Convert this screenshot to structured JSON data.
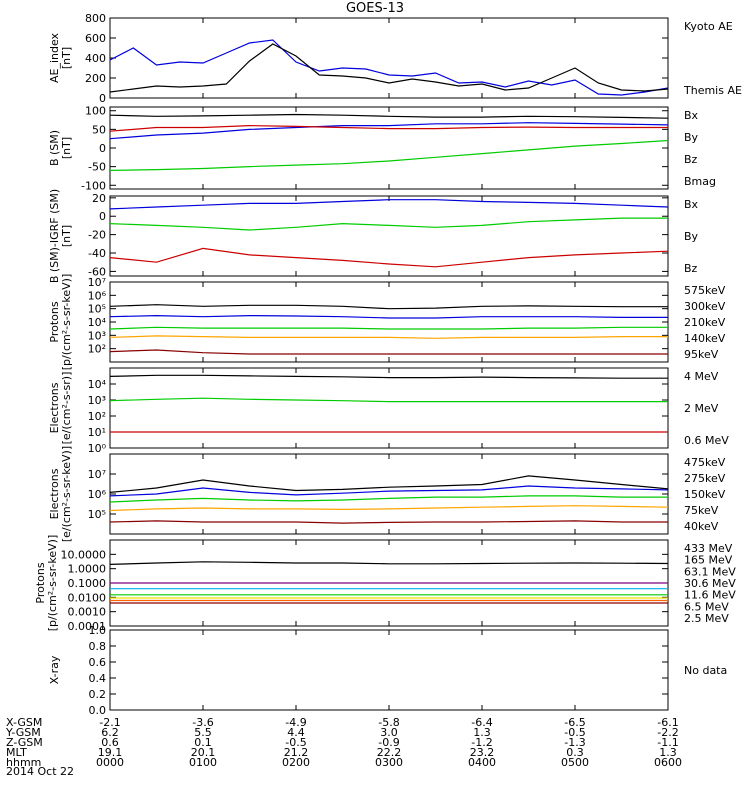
{
  "title": "GOES-13",
  "date": "2014 Oct 22",
  "colors": {
    "black": "#000000",
    "blue": "#0000dd",
    "green": "#00cc00",
    "red": "#cc0000",
    "orange": "#ffa500",
    "darkred": "#880000",
    "yellow": "#e6e600",
    "cyan": "#00b0f0",
    "purple": "#800080",
    "darkorange": "#ff6000"
  },
  "x_time_ticks": [
    "0000",
    "0100",
    "0200",
    "0300",
    "0400",
    "0500",
    "0600"
  ],
  "orbit_table": [
    {
      "label": "X-GSM",
      "values": [
        "-2.1",
        "-3.6",
        "-4.9",
        "-5.8",
        "-6.4",
        "-6.5",
        "-6.1"
      ]
    },
    {
      "label": "Y-GSM",
      "values": [
        "6.2",
        "5.5",
        "4.4",
        "3.0",
        "1.3",
        "-0.5",
        "-2.2"
      ]
    },
    {
      "label": "Z-GSM",
      "values": [
        "0.6",
        "0.1",
        "-0.5",
        "-0.9",
        "-1.2",
        "-1.3",
        "-1.1"
      ]
    },
    {
      "label": "MLT",
      "values": [
        "19.1",
        "20.1",
        "21.2",
        "22.2",
        "23.2",
        "0.3",
        "1.3"
      ]
    },
    {
      "label": "hhmm",
      "values": [
        "0000",
        "0100",
        "0200",
        "0300",
        "0400",
        "0500",
        "0600"
      ]
    }
  ],
  "chart_data": [
    {
      "type": "line",
      "ylabel": [
        "AE_index",
        "[nT]"
      ],
      "ylim": [
        0,
        800
      ],
      "yticks": [
        "0",
        "200",
        "400",
        "600",
        "800"
      ],
      "x": [
        0,
        0.25,
        0.5,
        0.75,
        1.0,
        1.25,
        1.5,
        1.75,
        2.0,
        2.25,
        2.5,
        2.75,
        3.0,
        3.25,
        3.5,
        3.75,
        4.0,
        4.25,
        4.5,
        4.75,
        5.0,
        5.25,
        5.5,
        5.75,
        6.0
      ],
      "series": [
        {
          "name": "Kyoto AE",
          "color": "blue",
          "values": [
            380,
            500,
            330,
            360,
            350,
            450,
            550,
            580,
            360,
            270,
            300,
            290,
            230,
            220,
            250,
            150,
            160,
            110,
            170,
            130,
            180,
            40,
            30,
            60,
            100
          ]
        },
        {
          "name": "Themis AE",
          "color": "black",
          "values": [
            60,
            90,
            120,
            110,
            120,
            140,
            370,
            540,
            420,
            230,
            220,
            200,
            150,
            190,
            160,
            120,
            140,
            80,
            100,
            200,
            300,
            150,
            80,
            70,
            90
          ]
        }
      ]
    },
    {
      "type": "line",
      "ylabel": [
        "B (SM)",
        "[nT]"
      ],
      "ylim": [
        -110,
        110
      ],
      "yticks": [
        "-100",
        "-50",
        "0",
        "50",
        "100"
      ],
      "x": [
        0,
        0.5,
        1.0,
        1.5,
        2.0,
        2.5,
        3.0,
        3.5,
        4.0,
        4.5,
        5.0,
        5.5,
        6.0
      ],
      "series": [
        {
          "name": "Bx",
          "color": "blue",
          "values": [
            25,
            35,
            40,
            50,
            55,
            60,
            60,
            65,
            65,
            68,
            66,
            64,
            62
          ]
        },
        {
          "name": "By",
          "color": "green",
          "values": [
            -60,
            -58,
            -55,
            -50,
            -46,
            -42,
            -35,
            -25,
            -15,
            -5,
            5,
            12,
            20
          ]
        },
        {
          "name": "Bz",
          "color": "red",
          "values": [
            45,
            55,
            55,
            60,
            58,
            55,
            52,
            52,
            55,
            56,
            55,
            55,
            55
          ]
        },
        {
          "name": "Bmag",
          "color": "black",
          "values": [
            88,
            85,
            86,
            88,
            90,
            88,
            85,
            83,
            83,
            85,
            84,
            82,
            80
          ]
        }
      ]
    },
    {
      "type": "line",
      "ylabel": [
        "B (SM)-IGRF (SM)",
        "[nT]"
      ],
      "ylim": [
        -65,
        22
      ],
      "yticks": [
        "-60",
        "-40",
        "-20",
        "0",
        "20"
      ],
      "x": [
        0,
        0.5,
        1.0,
        1.5,
        2.0,
        2.5,
        3.0,
        3.5,
        4.0,
        4.5,
        5.0,
        5.5,
        6.0
      ],
      "series": [
        {
          "name": "Bx",
          "color": "blue",
          "values": [
            8,
            10,
            12,
            14,
            14,
            16,
            18,
            18,
            16,
            15,
            14,
            12,
            10
          ]
        },
        {
          "name": "By",
          "color": "green",
          "values": [
            -8,
            -10,
            -12,
            -15,
            -12,
            -8,
            -10,
            -12,
            -10,
            -6,
            -4,
            -2,
            -2
          ]
        },
        {
          "name": "Bz",
          "color": "red",
          "values": [
            -45,
            -50,
            -35,
            -42,
            -45,
            -48,
            -52,
            -55,
            -50,
            -45,
            -42,
            -40,
            -38
          ]
        }
      ]
    },
    {
      "type": "line",
      "ylabel": [
        "Protons",
        "[p/(cm²-s-sr-keV)]"
      ],
      "log": true,
      "ylim": [
        10,
        10000000
      ],
      "yticks": [
        "10²",
        "10³",
        "10⁴",
        "10⁵",
        "10⁶",
        "10⁷"
      ],
      "x": [
        0,
        0.5,
        1.0,
        1.5,
        2.0,
        2.5,
        3.0,
        3.5,
        4.0,
        4.5,
        5.0,
        5.5,
        6.0
      ],
      "series": [
        {
          "name": "575keV",
          "color": "darkred",
          "values": [
            60,
            80,
            50,
            40,
            40,
            40,
            40,
            40,
            40,
            40,
            40,
            40,
            40
          ]
        },
        {
          "name": "300keV",
          "color": "orange",
          "values": [
            700,
            900,
            800,
            700,
            700,
            700,
            700,
            600,
            700,
            700,
            700,
            800,
            800
          ]
        },
        {
          "name": "210keV",
          "color": "green",
          "values": [
            3000,
            4000,
            3500,
            3500,
            3500,
            3500,
            3000,
            3000,
            3000,
            3500,
            3500,
            4000,
            4000
          ]
        },
        {
          "name": "140keV",
          "color": "blue",
          "values": [
            25000,
            30000,
            25000,
            30000,
            28000,
            25000,
            20000,
            20000,
            25000,
            25000,
            25000,
            22000,
            22000
          ]
        },
        {
          "name": "95keV",
          "color": "black",
          "values": [
            150000,
            200000,
            150000,
            180000,
            180000,
            150000,
            100000,
            110000,
            150000,
            160000,
            150000,
            140000,
            140000
          ]
        }
      ]
    },
    {
      "type": "line",
      "ylabel": [
        "Electrons",
        "[e/(cm²-s-sr)]"
      ],
      "log": true,
      "ylim": [
        1,
        100000
      ],
      "yticks": [
        "10⁰",
        "10¹",
        "10²",
        "10³",
        "10⁴"
      ],
      "x": [
        0,
        0.5,
        1.0,
        1.5,
        2.0,
        2.5,
        3.0,
        3.5,
        4.0,
        4.5,
        5.0,
        5.5,
        6.0
      ],
      "series": [
        {
          "name": "4 MeV",
          "color": "red",
          "values": [
            10,
            10,
            10,
            10,
            10,
            10,
            10,
            10,
            10,
            10,
            10,
            10,
            10
          ]
        },
        {
          "name": "2 MeV",
          "color": "green",
          "values": [
            900,
            1100,
            1300,
            1100,
            1000,
            900,
            800,
            800,
            800,
            800,
            800,
            800,
            800
          ]
        },
        {
          "name": "0.6 MeV",
          "color": "black",
          "values": [
            30000,
            35000,
            35000,
            32000,
            30000,
            28000,
            25000,
            25000,
            27000,
            25000,
            24000,
            23000,
            23000
          ]
        }
      ]
    },
    {
      "type": "line",
      "ylabel": [
        "Electrons",
        "[e/(cm²-s-sr-keV)]"
      ],
      "log": true,
      "ylim": [
        10000,
        100000000
      ],
      "yticks": [
        "10⁵",
        "10⁶",
        "10⁷"
      ],
      "x": [
        0,
        0.5,
        1.0,
        1.5,
        2.0,
        2.5,
        3.0,
        3.5,
        4.0,
        4.5,
        5.0,
        5.5,
        6.0
      ],
      "series": [
        {
          "name": "475keV",
          "color": "darkred",
          "values": [
            40000,
            45000,
            40000,
            40000,
            40000,
            35000,
            38000,
            40000,
            40000,
            42000,
            45000,
            40000,
            40000
          ]
        },
        {
          "name": "275keV",
          "color": "orange",
          "values": [
            150000,
            180000,
            200000,
            180000,
            180000,
            170000,
            180000,
            200000,
            220000,
            240000,
            260000,
            240000,
            220000
          ]
        },
        {
          "name": "150keV",
          "color": "green",
          "values": [
            400000,
            500000,
            600000,
            500000,
            450000,
            500000,
            600000,
            700000,
            700000,
            800000,
            800000,
            700000,
            700000
          ]
        },
        {
          "name": "75keV",
          "color": "blue",
          "values": [
            800000,
            1000000,
            2000000,
            1200000,
            900000,
            1100000,
            1400000,
            1500000,
            1600000,
            2500000,
            2000000,
            1800000,
            1600000
          ]
        },
        {
          "name": "40keV",
          "color": "black",
          "values": [
            1200000,
            2000000,
            5000000,
            2500000,
            1500000,
            1700000,
            2200000,
            2500000,
            3000000,
            8000000,
            5000000,
            3000000,
            1800000
          ]
        }
      ]
    },
    {
      "type": "line",
      "ylabel": [
        "Protons",
        "[p/(cm²-s-sr-keV)]"
      ],
      "log": true,
      "ylim": [
        0.0001,
        100
      ],
      "yticks": [
        "0.0001",
        "0.0010",
        "0.0100",
        "0.1000",
        "1.0000",
        "10.0000"
      ],
      "x": [
        0,
        0.5,
        1.0,
        1.5,
        2.0,
        2.5,
        3.0,
        3.5,
        4.0,
        4.5,
        5.0,
        5.5,
        6.0
      ],
      "series": [
        {
          "name": "433 MeV",
          "color": "darkred",
          "values": [
            0.004,
            0.004,
            0.004,
            0.004,
            0.004,
            0.004,
            0.004,
            0.004,
            0.004,
            0.004,
            0.004,
            0.004,
            0.004
          ]
        },
        {
          "name": "165 MeV",
          "color": "darkorange",
          "values": [
            0.006,
            0.006,
            0.006,
            0.006,
            0.006,
            0.006,
            0.006,
            0.006,
            0.006,
            0.006,
            0.006,
            0.006,
            0.006
          ]
        },
        {
          "name": "63.1 MeV",
          "color": "yellow",
          "values": [
            0.009,
            0.009,
            0.009,
            0.009,
            0.009,
            0.009,
            0.009,
            0.009,
            0.009,
            0.009,
            0.009,
            0.009,
            0.009
          ]
        },
        {
          "name": "30.6 MeV",
          "color": "green",
          "values": [
            0.015,
            0.015,
            0.015,
            0.015,
            0.015,
            0.015,
            0.015,
            0.015,
            0.015,
            0.015,
            0.015,
            0.015,
            0.015
          ]
        },
        {
          "name": "11.6 MeV",
          "color": "cyan",
          "values": [
            0.04,
            0.04,
            0.04,
            0.04,
            0.04,
            0.04,
            0.04,
            0.04,
            0.04,
            0.04,
            0.04,
            0.04,
            0.04
          ]
        },
        {
          "name": "6.5 MeV",
          "color": "purple",
          "values": [
            0.1,
            0.1,
            0.1,
            0.1,
            0.1,
            0.1,
            0.1,
            0.1,
            0.1,
            0.1,
            0.1,
            0.1,
            0.1
          ]
        },
        {
          "name": "2.5 MeV",
          "color": "black",
          "values": [
            2.0,
            2.5,
            3.0,
            2.8,
            2.5,
            2.5,
            2.2,
            2.2,
            2.3,
            2.4,
            2.5,
            2.4,
            2.3
          ]
        }
      ]
    },
    {
      "type": "line",
      "ylabel": [
        "X-ray"
      ],
      "ylim": [
        0,
        1.0
      ],
      "yticks": [
        "0.0",
        "0.2",
        "0.4",
        "0.6",
        "0.8",
        "1.0"
      ],
      "note": "No data",
      "series": []
    }
  ]
}
